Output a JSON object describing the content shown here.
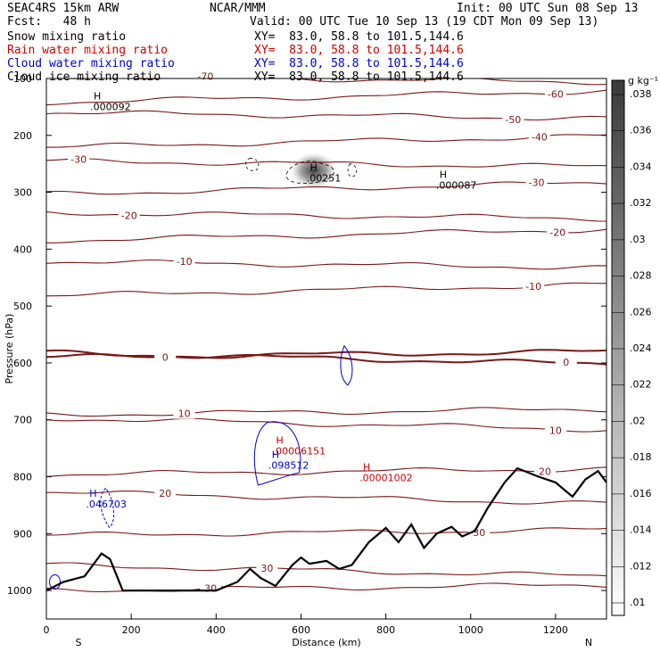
{
  "header": {
    "model": "SEAC4RS 15km ARW",
    "forecast": "Fcst:   48 h",
    "center": "NCAR/MMM",
    "init": "Init: 00 UTC Sun 08 Sep 13",
    "valid": "Valid: 00 UTC Tue 10 Sep 13 (19 CDT Mon 09 Sep 13)",
    "fields": [
      {
        "name": "Snow mixing ratio",
        "xy": "XY=  83.0, 58.8 to 101.5,144.6",
        "color": "#000000"
      },
      {
        "name": "Rain water mixing ratio",
        "xy": "XY=  83.0, 58.8 to 101.5,144.6",
        "color": "#cc0000"
      },
      {
        "name": "Cloud water mixing ratio",
        "xy": "XY=  83.0, 58.8 to 101.5,144.6",
        "color": "#0000cc"
      },
      {
        "name": "Cloud ice mixing ratio",
        "xy": "XY=  83.0, 58.8 to 101.5,144.6",
        "color": "#000000"
      }
    ]
  },
  "chart_data": {
    "type": "cross-section",
    "xlabel": "Distance (km)",
    "ylabel": "Pressure (hPa)",
    "xlim": [
      0,
      1320
    ],
    "ylim": [
      1050,
      100
    ],
    "xticks": [
      0,
      200,
      400,
      600,
      800,
      1000,
      1200
    ],
    "yticks": [
      100,
      200,
      300,
      400,
      500,
      600,
      700,
      800,
      900,
      1000
    ],
    "x_end_labels": {
      "left": "S",
      "right": "N"
    },
    "colorbar": {
      "unit": "g kg⁻¹",
      "ticks": [
        ".01",
        ".012",
        ".014",
        ".016",
        ".018",
        ".02",
        ".022",
        ".024",
        ".026",
        ".028",
        ".03",
        ".032",
        ".034",
        ".036",
        ".038"
      ]
    },
    "temperature_contours": [
      {
        "label": "-70",
        "p": 101,
        "label_x": 375
      },
      {
        "label": "-60",
        "p": 132,
        "label_x": 1200
      },
      {
        "label": "-50",
        "p": 165,
        "label_x": 1100
      },
      {
        "label": "-40",
        "p": 211,
        "label_x": 1162
      },
      {
        "label": "-30",
        "p": 250,
        "label_x": 76
      },
      {
        "label": "-30",
        "p": 293,
        "label_x": 1155
      },
      {
        "label": "-20",
        "p": 341,
        "label_x": 195
      },
      {
        "label": "-20",
        "p": 375,
        "label_x": 1205
      },
      {
        "label": "-10",
        "p": 427,
        "label_x": 325
      },
      {
        "label": "-10",
        "p": 472,
        "label_x": 1148
      },
      {
        "label": "0",
        "p": 585,
        "label_x": 280
      },
      {
        "label": "0",
        "p": 592,
        "label_x": 1225
      },
      {
        "label": "10",
        "p": 686,
        "label_x": 325
      },
      {
        "label": "10",
        "p": 707,
        "label_x": 1200
      },
      {
        "label": "20",
        "p": 791,
        "label_x": 1175
      },
      {
        "label": "20",
        "p": 837,
        "label_x": 280
      },
      {
        "label": "30",
        "p": 898,
        "label_x": 1020
      },
      {
        "label": "30",
        "p": 965,
        "label_x": 520
      },
      {
        "label": "30",
        "p": 995,
        "label_x": 387
      }
    ],
    "terrain_hPa": [
      [
        0,
        1000
      ],
      [
        40,
        985
      ],
      [
        90,
        975
      ],
      [
        130,
        935
      ],
      [
        150,
        945
      ],
      [
        180,
        1000
      ],
      [
        300,
        1000
      ],
      [
        400,
        1000
      ],
      [
        450,
        985
      ],
      [
        480,
        962
      ],
      [
        505,
        978
      ],
      [
        540,
        992
      ],
      [
        580,
        955
      ],
      [
        600,
        942
      ],
      [
        620,
        953
      ],
      [
        660,
        948
      ],
      [
        690,
        962
      ],
      [
        720,
        955
      ],
      [
        760,
        915
      ],
      [
        800,
        890
      ],
      [
        830,
        915
      ],
      [
        860,
        884
      ],
      [
        890,
        925
      ],
      [
        920,
        900
      ],
      [
        955,
        888
      ],
      [
        980,
        905
      ],
      [
        1010,
        895
      ],
      [
        1040,
        855
      ],
      [
        1080,
        810
      ],
      [
        1110,
        785
      ],
      [
        1160,
        800
      ],
      [
        1200,
        810
      ],
      [
        1240,
        835
      ],
      [
        1270,
        805
      ],
      [
        1300,
        790
      ],
      [
        1320,
        810
      ]
    ],
    "extrema_labels": [
      {
        "text": "H",
        "value": ".000092",
        "x": 120,
        "p": 140,
        "color": "#000000"
      },
      {
        "text": "H",
        "value": ".00251",
        "x": 630,
        "p": 265,
        "color": "#000000"
      },
      {
        "text": "H",
        "value": ".000087",
        "x": 935,
        "p": 278,
        "color": "#000000"
      },
      {
        "text": "H",
        "value": ".00006151",
        "x": 550,
        "p": 745,
        "color": "#cc0000"
      },
      {
        "text": "H",
        "value": ".098512",
        "x": 540,
        "p": 770,
        "color": "#0000cc"
      },
      {
        "text": "H",
        "value": ".00001002",
        "x": 755,
        "p": 792,
        "color": "#cc0000"
      },
      {
        "text": "H",
        "value": ".046703",
        "x": 110,
        "p": 838,
        "color": "#0000cc"
      }
    ]
  }
}
